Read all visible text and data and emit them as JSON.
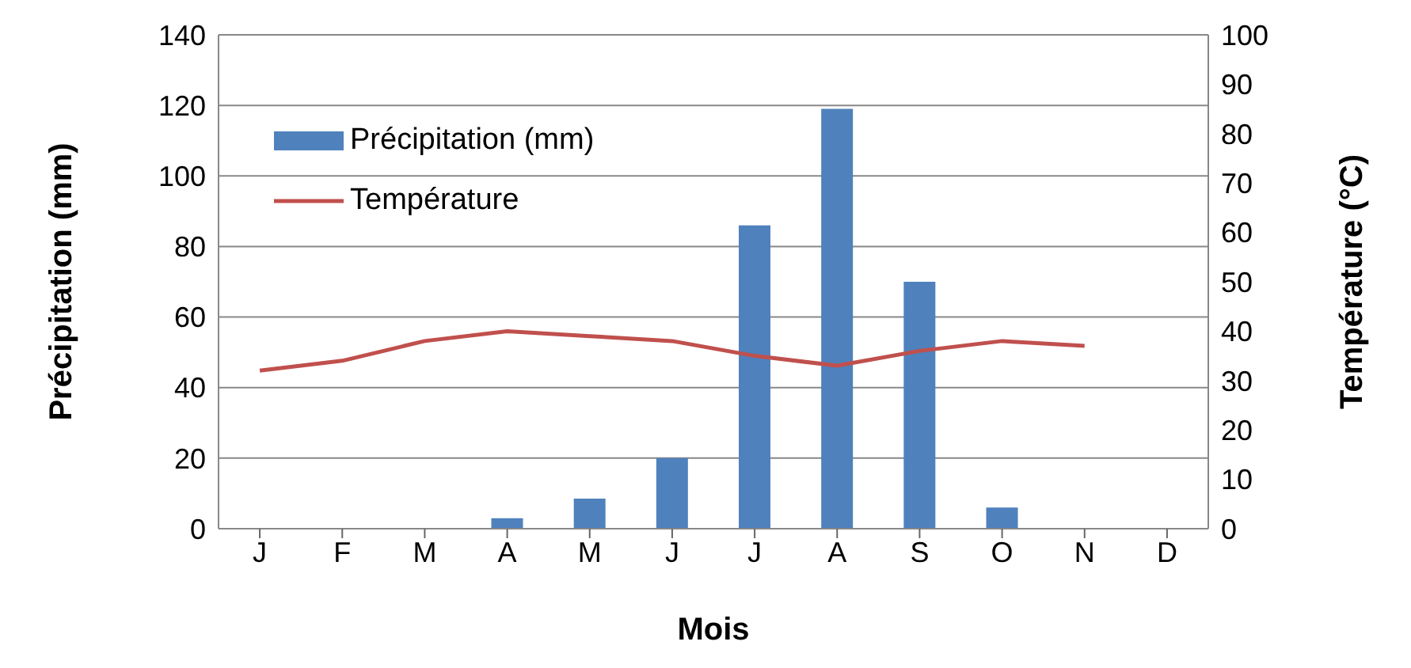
{
  "chart_data": {
    "type": "bar",
    "xlabel": "Mois",
    "ylabel": "Précipitation (mm)",
    "y2label": "Température (°C)",
    "categories": [
      "J",
      "F",
      "M",
      "A",
      "M",
      "J",
      "J",
      "A",
      "S",
      "O",
      "N",
      "D"
    ],
    "series": [
      {
        "name": "Précipitation (mm)",
        "color": "#4f81bd",
        "values": [
          0,
          0,
          0,
          3,
          8.5,
          20,
          86,
          119,
          70,
          6,
          0,
          0
        ]
      },
      {
        "name": "Température",
        "type": "line",
        "axis": "y2",
        "color": "#c0504d",
        "values": [
          32,
          34,
          38,
          40,
          39,
          38,
          35,
          33,
          36,
          38,
          37,
          null
        ]
      }
    ],
    "ylim": [
      0,
      140
    ],
    "yticks": [
      0,
      20,
      40,
      60,
      80,
      100,
      120,
      140
    ],
    "y2lim": [
      0,
      100
    ],
    "y2ticks": [
      0,
      10,
      20,
      30,
      40,
      50,
      60,
      70,
      80,
      90,
      100
    ],
    "grid": "y",
    "legend": "top left",
    "marker": "none"
  }
}
